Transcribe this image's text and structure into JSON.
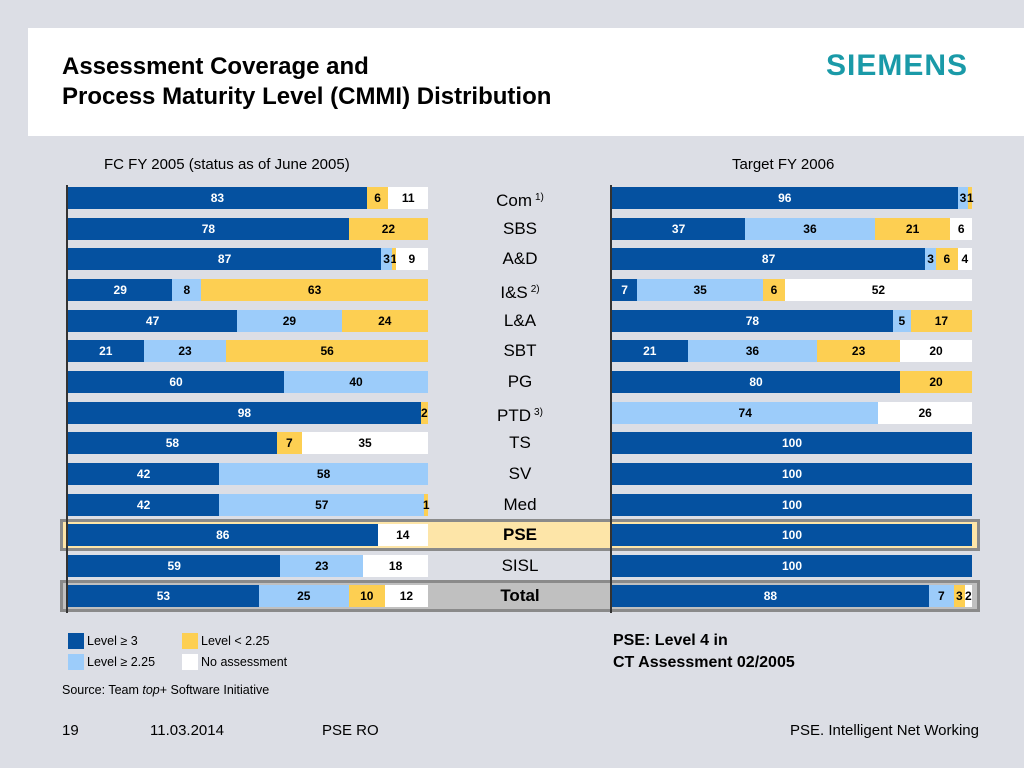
{
  "header": {
    "title_line1": "Assessment Coverage and",
    "title_line2": "Process Maturity Level (CMMI) Distribution",
    "logo": "SIEMENS"
  },
  "colors": {
    "level_ge_3": "#0551a0",
    "level_ge_2_25": "#9cccfa",
    "level_lt_2_25": "#fdcf52",
    "no_assessment": "#ffffff",
    "pse_highlight": "#fde5a8",
    "total_highlight": "#c0c0c0",
    "logo": "#1a9aa8"
  },
  "chart_data": [
    {
      "type": "bar",
      "orientation": "horizontal-stacked-100",
      "title": "FC FY 2005 (status as of June 2005)",
      "categories": [
        "Com",
        "SBS",
        "A&D",
        "I&S",
        "L&A",
        "SBT",
        "PG",
        "PTD",
        "TS",
        "SV",
        "Med",
        "PSE",
        "SISL",
        "Total"
      ],
      "series": [
        {
          "name": "Level ≥ 3",
          "values": [
            83,
            78,
            87,
            29,
            47,
            21,
            60,
            98,
            58,
            42,
            42,
            86,
            59,
            53
          ]
        },
        {
          "name": "Level ≥ 2.25",
          "values": [
            0,
            0,
            3,
            8,
            29,
            23,
            40,
            0,
            0,
            58,
            57,
            0,
            23,
            25
          ]
        },
        {
          "name": "Level < 2.25",
          "values": [
            6,
            22,
            1,
            63,
            24,
            56,
            0,
            2,
            7,
            0,
            1,
            0,
            0,
            10
          ]
        },
        {
          "name": "No assessment",
          "values": [
            11,
            0,
            9,
            0,
            0,
            0,
            0,
            0,
            35,
            0,
            0,
            14,
            18,
            12
          ]
        }
      ],
      "xlim": [
        0,
        100
      ]
    },
    {
      "type": "bar",
      "orientation": "horizontal-stacked-100",
      "title": "Target FY 2006",
      "categories": [
        "Com",
        "SBS",
        "A&D",
        "I&S",
        "L&A",
        "SBT",
        "PG",
        "PTD",
        "TS",
        "SV",
        "Med",
        "PSE",
        "SISL",
        "Total"
      ],
      "series": [
        {
          "name": "Level ≥ 3",
          "values": [
            96,
            37,
            87,
            7,
            78,
            21,
            80,
            0,
            100,
            100,
            100,
            100,
            100,
            88
          ]
        },
        {
          "name": "Level ≥ 2.25",
          "values": [
            3,
            36,
            3,
            35,
            5,
            36,
            0,
            74,
            0,
            0,
            0,
            0,
            0,
            7
          ]
        },
        {
          "name": "Level < 2.25",
          "values": [
            1,
            21,
            6,
            6,
            17,
            23,
            20,
            0,
            0,
            0,
            0,
            0,
            0,
            3
          ]
        },
        {
          "name": "No assessment",
          "values": [
            0,
            6,
            4,
            52,
            0,
            20,
            0,
            26,
            0,
            0,
            0,
            0,
            0,
            2
          ]
        }
      ],
      "xlim": [
        0,
        100
      ]
    }
  ],
  "categories": [
    {
      "label": "Com",
      "footnote": "1)"
    },
    {
      "label": "SBS",
      "footnote": ""
    },
    {
      "label": "A&D",
      "footnote": ""
    },
    {
      "label": "I&S",
      "footnote": "2)"
    },
    {
      "label": "L&A",
      "footnote": ""
    },
    {
      "label": "SBT",
      "footnote": ""
    },
    {
      "label": "PG",
      "footnote": ""
    },
    {
      "label": "PTD",
      "footnote": "3)"
    },
    {
      "label": "TS",
      "footnote": ""
    },
    {
      "label": "SV",
      "footnote": ""
    },
    {
      "label": "Med",
      "footnote": ""
    },
    {
      "label": "PSE",
      "footnote": "",
      "highlight": "pse"
    },
    {
      "label": "SISL",
      "footnote": ""
    },
    {
      "label": "Total",
      "footnote": "",
      "highlight": "total"
    }
  ],
  "legend": [
    {
      "label": "Level ≥ 3",
      "color": "#0551a0"
    },
    {
      "label": "Level < 2.25",
      "color": "#fdcf52"
    },
    {
      "label": "Level ≥ 2.25",
      "color": "#9cccfa"
    },
    {
      "label": "No assessment",
      "color": "#ffffff"
    }
  ],
  "source": {
    "prefix": "Source: Team ",
    "italic": "top",
    "suffix": "+ Software Initiative"
  },
  "note": {
    "line1": "PSE: Level 4 in",
    "line2": "CT Assessment 02/2005"
  },
  "footer": {
    "page": "19",
    "date": "11.03.2014",
    "dept": "PSE RO",
    "tagline": "PSE. Intelligent Net Working"
  }
}
